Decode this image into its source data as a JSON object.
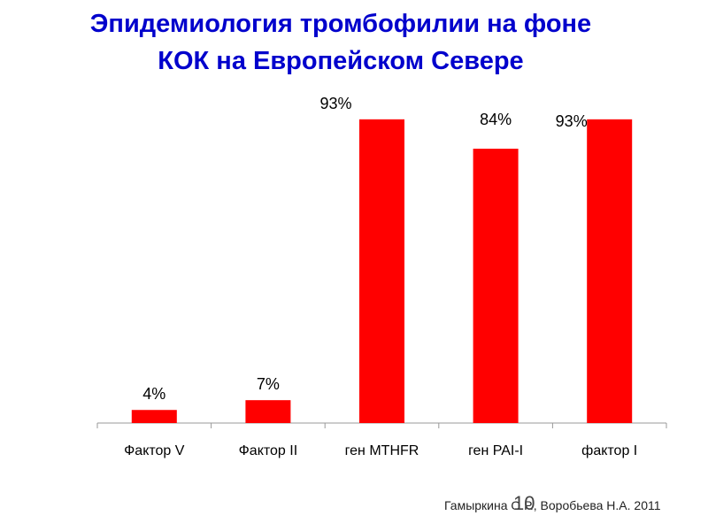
{
  "title_lines": [
    "Эпидемиология тромбофилии на фоне",
    "КОК на Европейском Севере"
  ],
  "chart_data": {
    "type": "bar",
    "title": "Эпидемиология тромбофилии на фоне КОК на Европейском Севере",
    "categories": [
      "Фактор V",
      "Фактор II",
      "ген MTHFR",
      "ген PAI-I",
      "фактор I"
    ],
    "values": [
      4,
      7,
      93,
      84,
      93
    ],
    "data_labels": [
      "4%",
      "7%",
      "93%",
      "84%",
      "93%"
    ],
    "xlabel": "",
    "ylabel": "",
    "ylim": [
      0,
      100
    ],
    "grid": false,
    "legend": "none",
    "bar_color": "#ff0000",
    "axis_color": "#999999",
    "category_label_color": "#000000",
    "data_label_color": "#000000"
  },
  "footer": {
    "citation": "Гамыркина О.Р., Воробьева Н.А. 2011",
    "page_number": "10"
  }
}
